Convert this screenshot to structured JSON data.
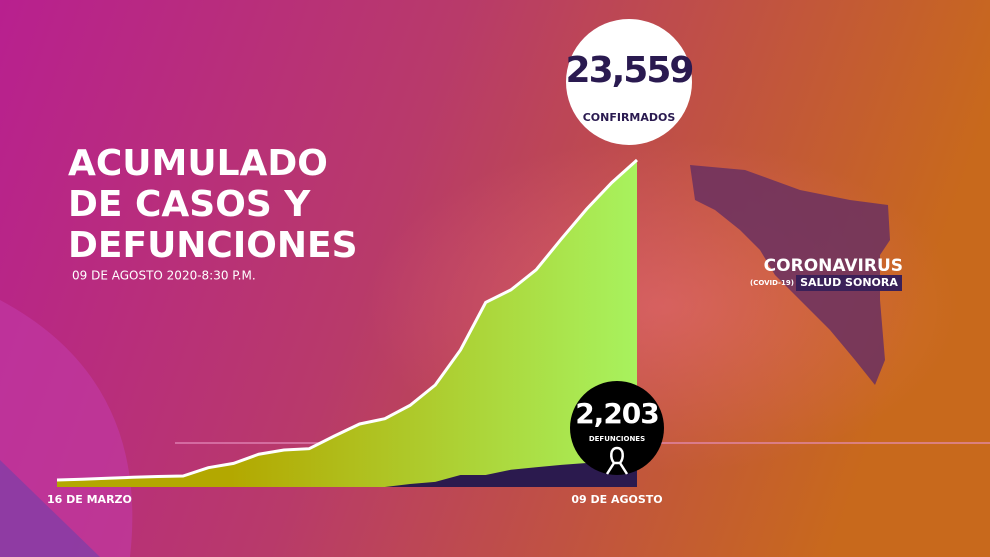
{
  "chart_data": {
    "type": "area",
    "title": [
      "ACUMULADO",
      "DE CASOS Y",
      "DEFUNCIONES"
    ],
    "subtitle": "09 DE AGOSTO 2020-8:30 P.M.",
    "categories": [
      "16 DE MARZO",
      null,
      null,
      null,
      null,
      null,
      null,
      null,
      null,
      null,
      null,
      null,
      null,
      null,
      null,
      null,
      null,
      null,
      null,
      null,
      null,
      null,
      null,
      "09 DE AGOSTO"
    ],
    "series": [
      {
        "name": "CONFIRMADOS",
        "color": "#b8b400",
        "values": [
          504,
          560,
          630,
          700,
          760,
          790,
          1390,
          1700,
          2360,
          2666,
          2760,
          3675,
          4540,
          4920,
          5880,
          7350,
          9871,
          13300,
          14200,
          15650,
          17870,
          20020,
          21930,
          23559
        ],
        "value_labels": [
          null,
          null,
          null,
          null,
          null,
          null,
          null,
          null,
          null,
          null,
          null,
          null,
          null,
          null,
          null,
          null,
          null,
          null,
          null,
          null,
          null,
          null,
          null,
          "23,559"
        ]
      },
      {
        "name": "DEFUNCIONES",
        "color": "#2b1a4e",
        "values": [
          0,
          0,
          0,
          0,
          0,
          0,
          0,
          0,
          0,
          0,
          0,
          0,
          0,
          0,
          216,
          370,
          865,
          865,
          1240,
          1420,
          1590,
          1730,
          1940,
          2203
        ],
        "value_labels": [
          null,
          null,
          null,
          null,
          null,
          null,
          null,
          null,
          null,
          null,
          null,
          null,
          null,
          null,
          null,
          null,
          null,
          null,
          null,
          null,
          null,
          null,
          null,
          "2,203"
        ]
      }
    ],
    "branding": {
      "name": "CORONAVIRUS",
      "tag": "(COVID-19)",
      "org": "SALUD SONORA"
    }
  }
}
